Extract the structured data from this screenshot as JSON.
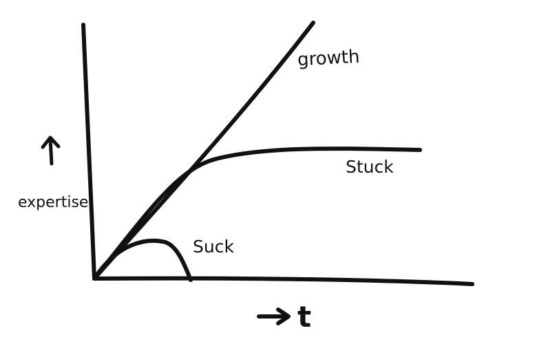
{
  "diagram": {
    "ink_color": "#111111",
    "background": "#ffffff",
    "y_axis": {
      "label": "expertise",
      "arrow_icon": "up-arrow-icon"
    },
    "x_axis": {
      "label": "t",
      "arrow_icon": "right-arrow-icon"
    },
    "curves": [
      {
        "name": "growth",
        "label": "growth"
      },
      {
        "name": "stuck",
        "label": "Stuck"
      },
      {
        "name": "suck",
        "label": "Suck"
      }
    ]
  }
}
